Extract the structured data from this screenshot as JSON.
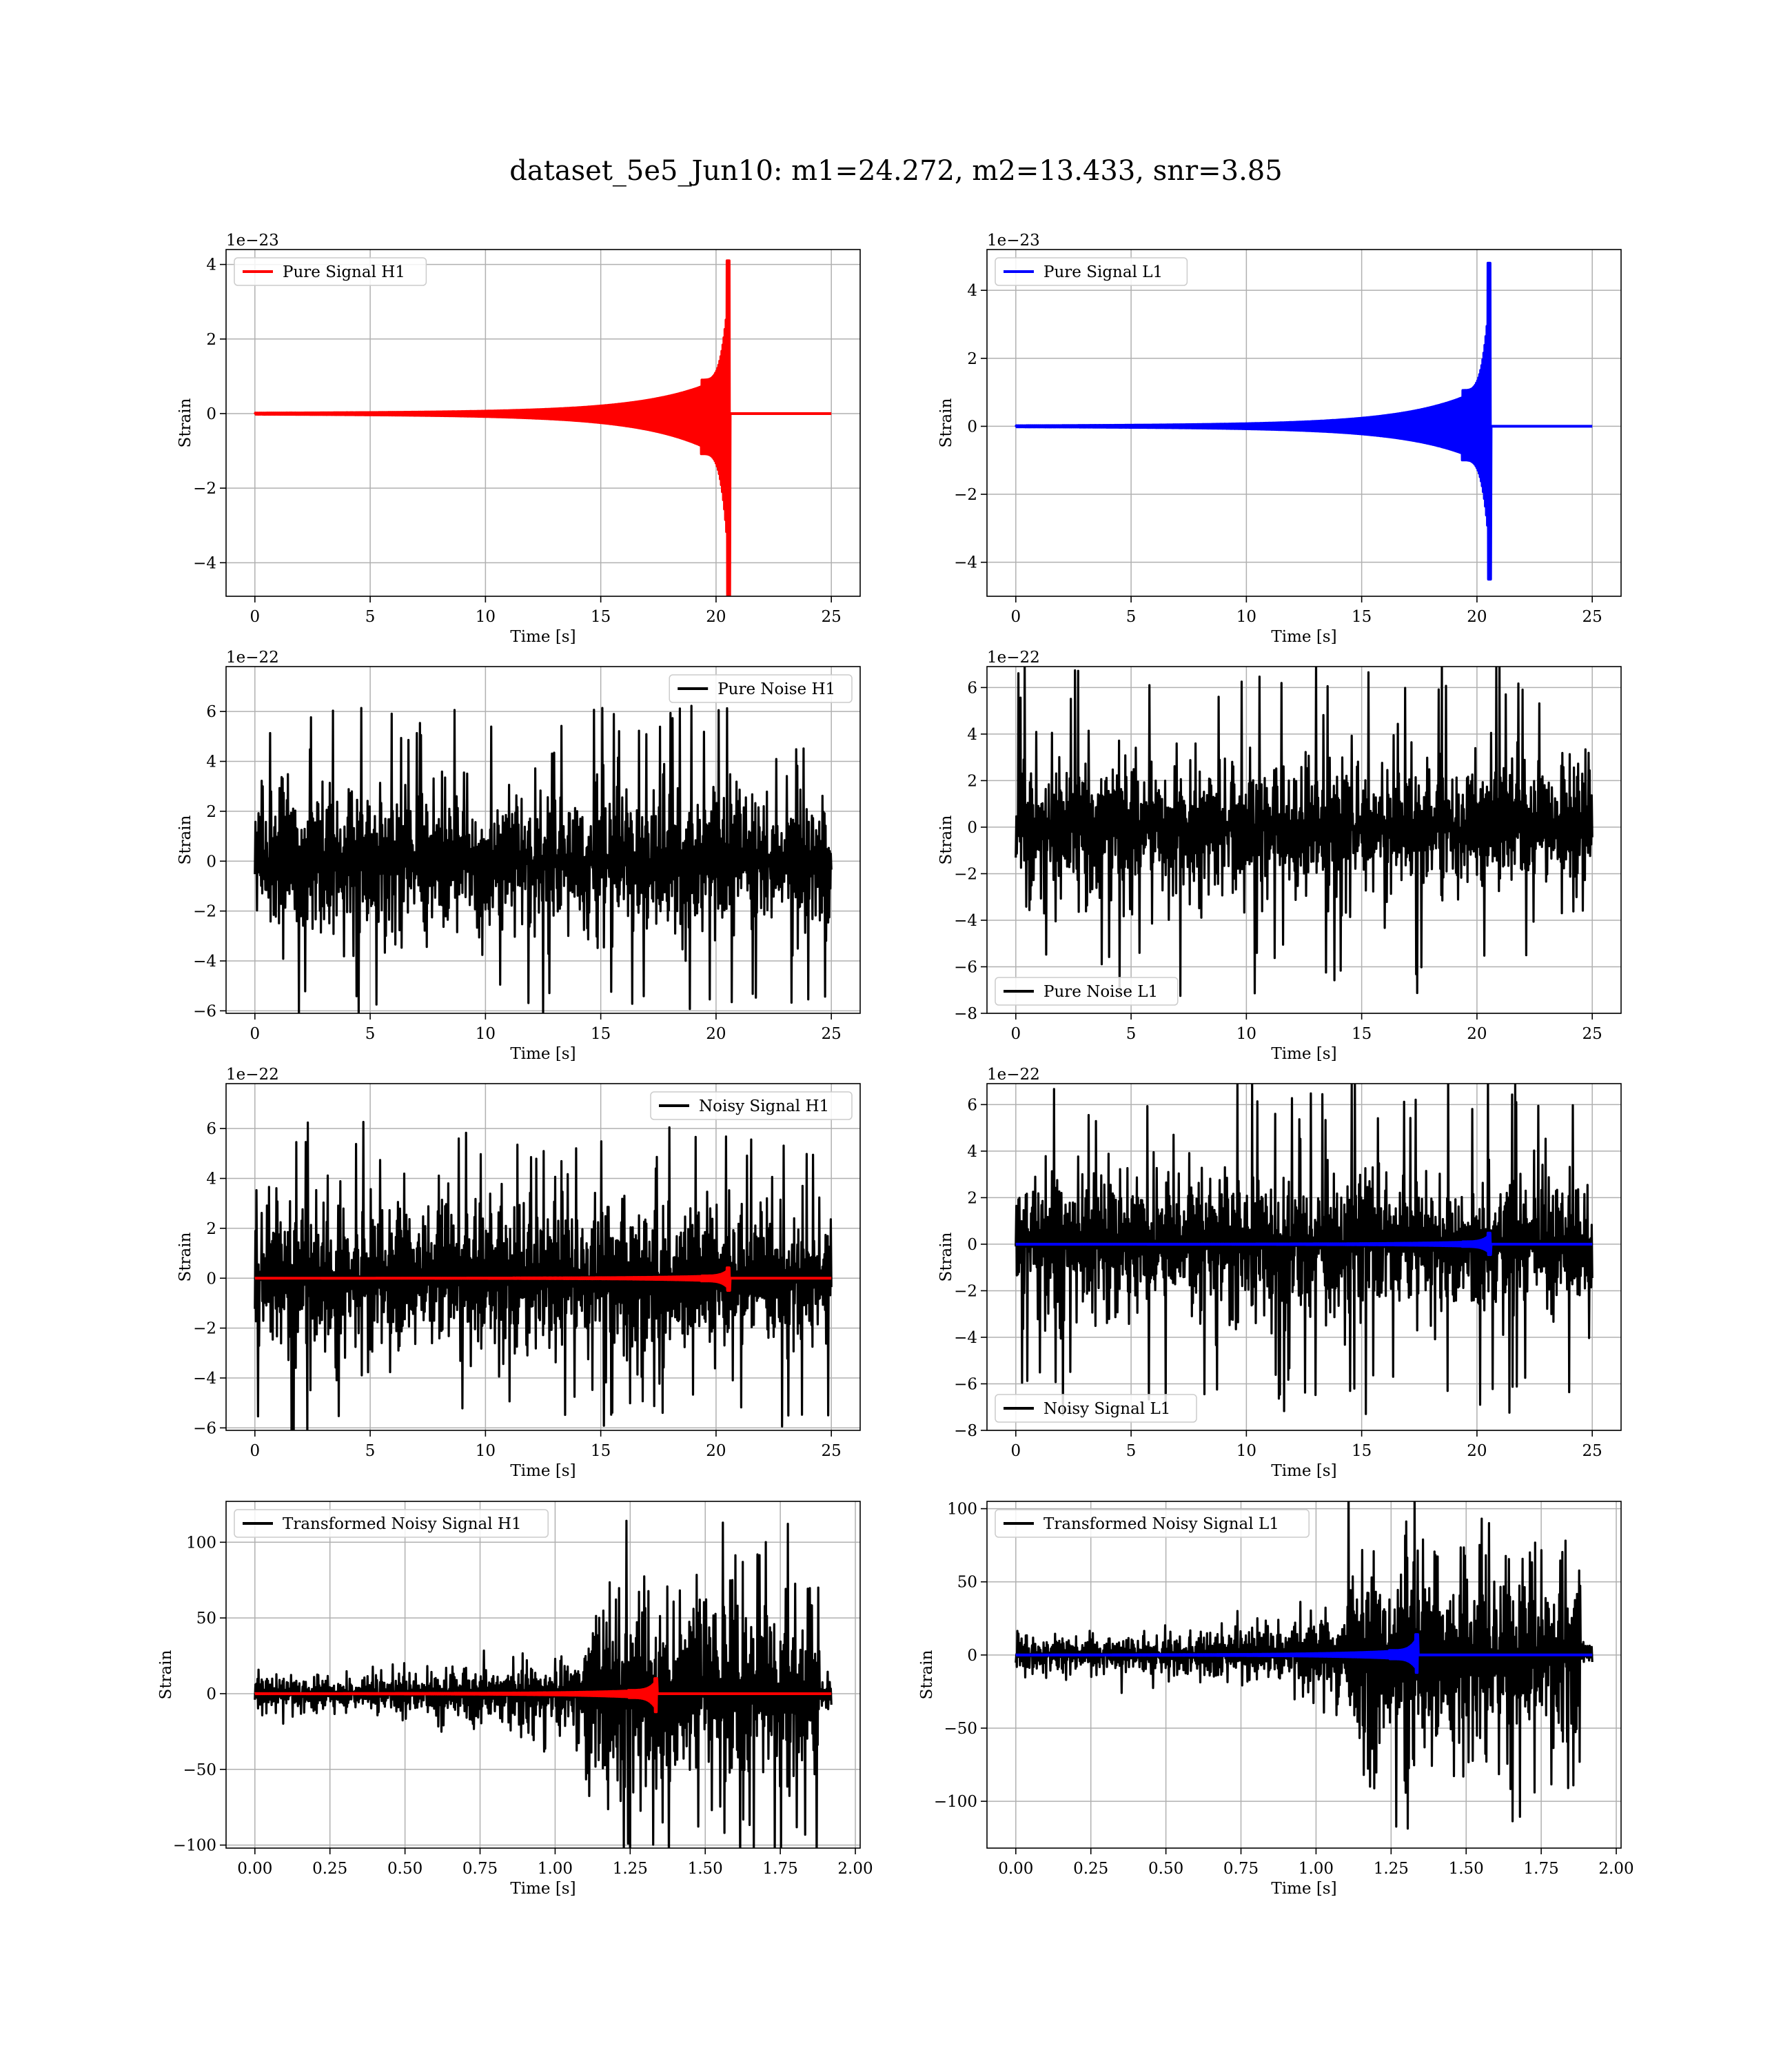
{
  "title": "dataset_5e5_Jun10: m1=24.272, m2=13.433, snr=3.85",
  "colors": {
    "h1": "#ff0000",
    "l1": "#0000ff",
    "noise": "#000000",
    "grid": "#b0b0b0"
  },
  "chart_data": [
    {
      "type": "line",
      "id": "pure-signal-h1",
      "xlabel": "Time [s]",
      "ylabel": "Strain",
      "offset_text": "1e−23",
      "xlim": [
        -1.25,
        26.25
      ],
      "ylim": [
        -4.9,
        4.4
      ],
      "xticks": [
        0,
        5,
        10,
        15,
        20,
        25
      ],
      "xticklabels": [
        "0",
        "5",
        "10",
        "15",
        "20",
        "25"
      ],
      "yticks": [
        -4,
        -2,
        0,
        2,
        4
      ],
      "yticklabels": [
        "−4",
        "−2",
        "0",
        "2",
        "4"
      ],
      "legend": "top-left",
      "series": [
        {
          "name": "Pure Signal H1",
          "color": "#ff0000",
          "kind": "chirp",
          "x_end": 25,
          "merger_time": 20.6,
          "peak": 4.1,
          "trough": -4.9
        }
      ]
    },
    {
      "type": "line",
      "id": "pure-signal-l1",
      "xlabel": "Time [s]",
      "ylabel": "Strain",
      "offset_text": "1e−23",
      "xlim": [
        -1.25,
        26.25
      ],
      "ylim": [
        -5.0,
        5.2
      ],
      "xticks": [
        0,
        5,
        10,
        15,
        20,
        25
      ],
      "xticklabels": [
        "0",
        "5",
        "10",
        "15",
        "20",
        "25"
      ],
      "yticks": [
        -4,
        -2,
        0,
        2,
        4
      ],
      "yticklabels": [
        "−4",
        "−2",
        "0",
        "2",
        "4"
      ],
      "legend": "top-left",
      "series": [
        {
          "name": "Pure Signal L1",
          "color": "#0000ff",
          "kind": "chirp",
          "x_end": 25,
          "merger_time": 20.6,
          "peak": 4.8,
          "trough": -4.5
        }
      ]
    },
    {
      "type": "line",
      "id": "pure-noise-h1",
      "xlabel": "Time [s]",
      "ylabel": "Strain",
      "offset_text": "1e−22",
      "xlim": [
        -1.25,
        26.25
      ],
      "ylim": [
        -6.1,
        7.8
      ],
      "xticks": [
        0,
        5,
        10,
        15,
        20,
        25
      ],
      "xticklabels": [
        "0",
        "5",
        "10",
        "15",
        "20",
        "25"
      ],
      "yticks": [
        -6,
        -4,
        -2,
        0,
        2,
        4,
        6
      ],
      "yticklabels": [
        "−6",
        "−4",
        "−2",
        "0",
        "2",
        "4",
        "6"
      ],
      "legend": "top-right",
      "series": [
        {
          "name": "Pure Noise H1",
          "color": "#000000",
          "kind": "noise",
          "x_end": 25,
          "band": 3.8,
          "max": 6.4,
          "min": -5.6
        }
      ]
    },
    {
      "type": "line",
      "id": "pure-noise-l1",
      "xlabel": "Time [s]",
      "ylabel": "Strain",
      "offset_text": "1e−22",
      "xlim": [
        -1.25,
        26.25
      ],
      "ylim": [
        -8.0,
        6.9
      ],
      "xticks": [
        0,
        5,
        10,
        15,
        20,
        25
      ],
      "xticklabels": [
        "0",
        "5",
        "10",
        "15",
        "20",
        "25"
      ],
      "yticks": [
        -8,
        -6,
        -4,
        -2,
        0,
        2,
        4,
        6
      ],
      "yticklabels": [
        "−8",
        "−6",
        "−4",
        "−2",
        "0",
        "2",
        "4",
        "6"
      ],
      "legend": "bottom-left",
      "series": [
        {
          "name": "Pure Noise L1",
          "color": "#000000",
          "kind": "noise",
          "x_end": 25,
          "band": 3.8,
          "max": 6.3,
          "min": -7.3
        }
      ]
    },
    {
      "type": "line",
      "id": "noisy-signal-h1",
      "xlabel": "Time [s]",
      "ylabel": "Strain",
      "offset_text": "1e−22",
      "xlim": [
        -1.25,
        26.25
      ],
      "ylim": [
        -6.1,
        7.8
      ],
      "xticks": [
        0,
        5,
        10,
        15,
        20,
        25
      ],
      "xticklabels": [
        "0",
        "5",
        "10",
        "15",
        "20",
        "25"
      ],
      "yticks": [
        -6,
        -4,
        -2,
        0,
        2,
        4,
        6
      ],
      "yticklabels": [
        "−6",
        "−4",
        "−2",
        "0",
        "2",
        "4",
        "6"
      ],
      "legend": "top-right",
      "series": [
        {
          "name": "Noisy Signal H1",
          "color": "#000000",
          "kind": "noise",
          "x_end": 25,
          "band": 3.8,
          "max": 6.4,
          "min": -5.6
        },
        {
          "color": "#ff0000",
          "kind": "chirp",
          "x_end": 25,
          "merger_time": 20.6,
          "peak": 0.42,
          "trough": -0.49
        }
      ]
    },
    {
      "type": "line",
      "id": "noisy-signal-l1",
      "xlabel": "Time [s]",
      "ylabel": "Strain",
      "offset_text": "1e−22",
      "xlim": [
        -1.25,
        26.25
      ],
      "ylim": [
        -8.0,
        6.9
      ],
      "xticks": [
        0,
        5,
        10,
        15,
        20,
        25
      ],
      "xticklabels": [
        "0",
        "5",
        "10",
        "15",
        "20",
        "25"
      ],
      "yticks": [
        -8,
        -6,
        -4,
        -2,
        0,
        2,
        4,
        6
      ],
      "yticklabels": [
        "−8",
        "−6",
        "−4",
        "−2",
        "0",
        "2",
        "4",
        "6"
      ],
      "legend": "bottom-left",
      "series": [
        {
          "name": "Noisy Signal L1",
          "color": "#000000",
          "kind": "noise",
          "x_end": 25,
          "band": 3.8,
          "max": 6.3,
          "min": -7.3
        },
        {
          "color": "#0000ff",
          "kind": "chirp",
          "x_end": 25,
          "merger_time": 20.6,
          "peak": 0.48,
          "trough": -0.45
        }
      ]
    },
    {
      "type": "line",
      "id": "transformed-noisy-signal-h1",
      "xlabel": "Time [s]",
      "ylabel": "Strain",
      "xlim": [
        -0.096,
        2.016
      ],
      "ylim": [
        -102,
        127
      ],
      "xticks": [
        0,
        0.25,
        0.5,
        0.75,
        1.0,
        1.25,
        1.5,
        1.75,
        2.0
      ],
      "xticklabels": [
        "0.00",
        "0.25",
        "0.50",
        "0.75",
        "1.00",
        "1.25",
        "1.50",
        "1.75",
        "2.00"
      ],
      "yticks": [
        -100,
        -50,
        0,
        50,
        100
      ],
      "yticklabels": [
        "−100",
        "−50",
        "0",
        "50",
        "100"
      ],
      "legend": "top-left",
      "series": [
        {
          "name": "Transformed Noisy Signal H1",
          "color": "#000000",
          "kind": "whitened",
          "x_end": 1.92,
          "rise_time": 1.1,
          "drop_time": 1.88,
          "max": 118,
          "min": -97
        },
        {
          "color": "#ff0000",
          "kind": "chirp",
          "x_end": 1.92,
          "merger_time": 1.34,
          "peak": 10,
          "trough": -12
        }
      ]
    },
    {
      "type": "line",
      "id": "transformed-noisy-signal-l1",
      "xlabel": "Time [s]",
      "ylabel": "Strain",
      "xlim": [
        -0.096,
        2.016
      ],
      "ylim": [
        -132,
        105
      ],
      "xticks": [
        0,
        0.25,
        0.5,
        0.75,
        1.0,
        1.25,
        1.5,
        1.75,
        2.0
      ],
      "xticklabels": [
        "0.00",
        "0.25",
        "0.50",
        "0.75",
        "1.00",
        "1.25",
        "1.50",
        "1.75",
        "2.00"
      ],
      "yticks": [
        -100,
        -50,
        0,
        50,
        100
      ],
      "yticklabels": [
        "−100",
        "−50",
        "0",
        "50",
        "100"
      ],
      "legend": "top-left",
      "series": [
        {
          "name": "Transformed Noisy Signal L1",
          "color": "#000000",
          "kind": "whitened",
          "x_end": 1.92,
          "rise_time": 1.1,
          "drop_time": 1.88,
          "max": 95,
          "min": -122
        },
        {
          "color": "#0000ff",
          "kind": "chirp",
          "x_end": 1.92,
          "merger_time": 1.34,
          "peak": 14,
          "trough": -12
        }
      ]
    }
  ]
}
